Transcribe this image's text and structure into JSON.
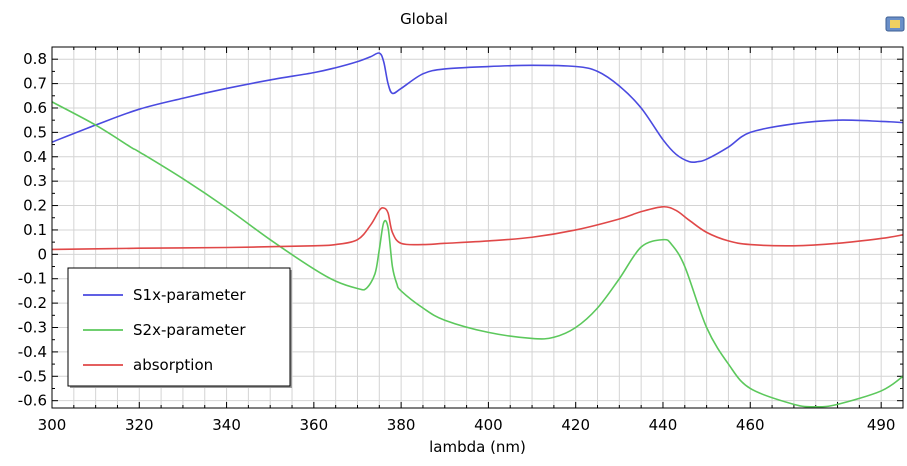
{
  "chart_data": {
    "type": "line",
    "title": "Global",
    "xlabel": "lambda (nm)",
    "ylabel": "",
    "xlim": [
      300,
      495
    ],
    "ylim": [
      -0.63,
      0.85
    ],
    "xticks": [
      300,
      320,
      340,
      360,
      380,
      400,
      420,
      440,
      460,
      480,
      490
    ],
    "xtick_labels": [
      "300",
      "320",
      "340",
      "360",
      "380",
      "400",
      "420",
      "440",
      "460",
      "",
      "490"
    ],
    "yticks": [
      0.8,
      0.7,
      0.6,
      0.5,
      0.4,
      0.3,
      0.2,
      0.1,
      0,
      -0.1,
      -0.2,
      -0.3,
      -0.4,
      -0.5,
      -0.6
    ],
    "ytick_labels": [
      "0.8",
      "0.7",
      "0.6",
      "0.5",
      "0.4",
      "0.3",
      "0.2",
      "0.1",
      "0",
      "-0.1",
      "-0.2",
      "-0.3",
      "-0.4",
      "-0.5",
      "-0.6"
    ],
    "grid": true,
    "legend_position": "bottom-left",
    "series": [
      {
        "name": "S1x-parameter",
        "color": "#4a4ae0",
        "x": [
          300,
          310,
          320,
          330,
          340,
          350,
          360,
          365,
          370,
          373,
          375,
          376,
          377,
          378,
          380,
          385,
          390,
          400,
          410,
          420,
          425,
          430,
          435,
          440,
          443,
          446,
          448,
          450,
          455,
          460,
          470,
          480,
          490,
          495
        ],
        "y": [
          0.46,
          0.53,
          0.595,
          0.64,
          0.68,
          0.715,
          0.745,
          0.765,
          0.79,
          0.81,
          0.825,
          0.79,
          0.7,
          0.66,
          0.68,
          0.74,
          0.76,
          0.77,
          0.775,
          0.77,
          0.75,
          0.69,
          0.6,
          0.47,
          0.41,
          0.38,
          0.38,
          0.39,
          0.44,
          0.5,
          0.535,
          0.55,
          0.545,
          0.54
        ]
      },
      {
        "name": "S2x-parameter",
        "color": "#5cc85c",
        "x": [
          300,
          310,
          318,
          320,
          330,
          340,
          350,
          360,
          365,
          370,
          372,
          374,
          375,
          376,
          377,
          378,
          379,
          380,
          385,
          390,
          400,
          410,
          415,
          420,
          425,
          430,
          435,
          440,
          442,
          445,
          450,
          455,
          460,
          470,
          475,
          480,
          490,
          495
        ],
        "y": [
          0.625,
          0.53,
          0.44,
          0.42,
          0.31,
          0.19,
          0.06,
          -0.06,
          -0.11,
          -0.14,
          -0.14,
          -0.08,
          0.02,
          0.13,
          0.11,
          -0.05,
          -0.12,
          -0.15,
          -0.22,
          -0.27,
          -0.32,
          -0.345,
          -0.34,
          -0.3,
          -0.22,
          -0.1,
          0.03,
          0.06,
          0.04,
          -0.05,
          -0.3,
          -0.45,
          -0.55,
          -0.615,
          -0.625,
          -0.615,
          -0.56,
          -0.5
        ]
      },
      {
        "name": "absorption",
        "color": "#e04848",
        "x": [
          300,
          320,
          340,
          360,
          365,
          370,
          373,
          375,
          376,
          377,
          378,
          380,
          385,
          390,
          400,
          410,
          420,
          430,
          435,
          440,
          443,
          446,
          450,
          455,
          460,
          470,
          480,
          490,
          495
        ],
        "y": [
          0.02,
          0.025,
          0.028,
          0.035,
          0.04,
          0.06,
          0.12,
          0.18,
          0.19,
          0.17,
          0.09,
          0.045,
          0.04,
          0.045,
          0.055,
          0.07,
          0.1,
          0.145,
          0.175,
          0.195,
          0.18,
          0.14,
          0.09,
          0.055,
          0.04,
          0.035,
          0.045,
          0.065,
          0.08
        ]
      }
    ]
  }
}
